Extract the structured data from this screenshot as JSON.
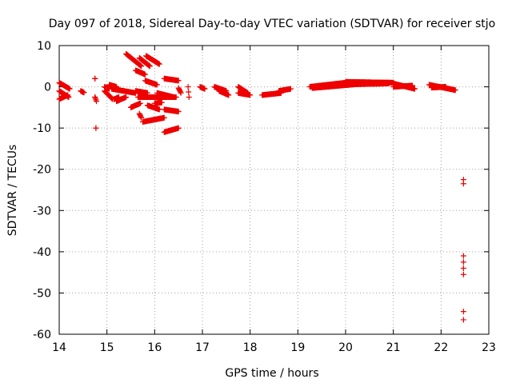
{
  "chart_data": {
    "type": "scatter",
    "title": "Day 097 of 2018, Sidereal Day-to-day VTEC variation (SDTVAR) for receiver stjo",
    "xlabel": "GPS time / hours",
    "ylabel": "SDTVAR / TECUs",
    "xlim": [
      14,
      23
    ],
    "ylim": [
      -60,
      10
    ],
    "xticks": [
      14,
      15,
      16,
      17,
      18,
      19,
      20,
      21,
      22,
      23
    ],
    "yticks": [
      10,
      0,
      -10,
      -20,
      -30,
      -40,
      -50,
      -60
    ],
    "grid": true,
    "marker": "plus",
    "color": "#ee0000",
    "segments": [
      {
        "x": [
          14.0,
          14.22
        ],
        "y": [
          1.0,
          -0.5
        ]
      },
      {
        "x": [
          14.0,
          14.2
        ],
        "y": [
          -1.0,
          -2.5
        ]
      },
      {
        "x": [
          14.0,
          14.18
        ],
        "y": [
          -3.0,
          -2.0
        ]
      },
      {
        "x": [
          14.45,
          14.52
        ],
        "y": [
          -1.0,
          -1.4
        ]
      },
      {
        "x": [
          14.75,
          14.75
        ],
        "y": [
          2.0,
          2.0
        ]
      },
      {
        "x": [
          14.75,
          14.78
        ],
        "y": [
          -2.5,
          -3.5
        ]
      },
      {
        "x": [
          14.77,
          14.77
        ],
        "y": [
          -10.0,
          -10.0
        ]
      },
      {
        "x": [
          14.95,
          15.12
        ],
        "y": [
          -1.0,
          -3.0
        ]
      },
      {
        "x": [
          14.95,
          15.05
        ],
        "y": [
          0.0,
          -0.5
        ]
      },
      {
        "x": [
          15.05,
          15.2
        ],
        "y": [
          0.5,
          0.0
        ]
      },
      {
        "x": [
          15.15,
          15.25
        ],
        "y": [
          -3.0,
          -2.5
        ]
      },
      {
        "x": [
          15.2,
          15.4
        ],
        "y": [
          -3.5,
          -2.5
        ]
      },
      {
        "x": [
          15.1,
          15.6
        ],
        "y": [
          -0.5,
          -1.5
        ]
      },
      {
        "x": [
          15.4,
          15.72
        ],
        "y": [
          8.0,
          5.0
        ]
      },
      {
        "x": [
          15.68,
          15.9
        ],
        "y": [
          7.0,
          5.0
        ]
      },
      {
        "x": [
          15.82,
          16.1
        ],
        "y": [
          7.5,
          5.5
        ]
      },
      {
        "x": [
          15.6,
          15.8
        ],
        "y": [
          4.0,
          3.0
        ]
      },
      {
        "x": [
          15.6,
          15.85
        ],
        "y": [
          -1.0,
          -1.5
        ]
      },
      {
        "x": [
          15.8,
          16.05
        ],
        "y": [
          1.5,
          0.5
        ]
      },
      {
        "x": [
          16.05,
          16.4
        ],
        "y": [
          -1.5,
          -2.5
        ]
      },
      {
        "x": [
          15.5,
          15.7
        ],
        "y": [
          -5.0,
          -4.0
        ]
      },
      {
        "x": [
          15.65,
          16.0
        ],
        "y": [
          -2.5,
          -2.5
        ]
      },
      {
        "x": [
          15.85,
          16.1
        ],
        "y": [
          -4.5,
          -5.5
        ]
      },
      {
        "x": [
          16.0,
          16.45
        ],
        "y": [
          -2.5,
          -2.5
        ]
      },
      {
        "x": [
          16.0,
          16.15
        ],
        "y": [
          -4.0,
          -3.8
        ]
      },
      {
        "x": [
          16.2,
          16.5
        ],
        "y": [
          -5.5,
          -6.0
        ]
      },
      {
        "x": [
          15.68,
          15.72
        ],
        "y": [
          -6.5,
          -7.5
        ]
      },
      {
        "x": [
          15.75,
          16.2
        ],
        "y": [
          -8.5,
          -7.5
        ]
      },
      {
        "x": [
          16.2,
          16.5
        ],
        "y": [
          -11.0,
          -10.0
        ]
      },
      {
        "x": [
          16.2,
          16.5
        ],
        "y": [
          2.0,
          1.5
        ]
      },
      {
        "x": [
          16.5,
          16.55
        ],
        "y": [
          -0.3,
          -1.5
        ]
      },
      {
        "x": [
          16.7,
          16.72
        ],
        "y": [
          0.0,
          -2.5
        ]
      },
      {
        "x": [
          16.95,
          17.05
        ],
        "y": [
          0.0,
          -0.5
        ]
      },
      {
        "x": [
          17.25,
          17.5
        ],
        "y": [
          0.0,
          -1.0
        ]
      },
      {
        "x": [
          17.35,
          17.55
        ],
        "y": [
          -1.0,
          -2.0
        ]
      },
      {
        "x": [
          17.75,
          17.95
        ],
        "y": [
          0.0,
          -1.5
        ]
      },
      {
        "x": [
          17.75,
          18.0
        ],
        "y": [
          -1.5,
          -2.0
        ]
      },
      {
        "x": [
          18.25,
          18.65
        ],
        "y": [
          -2.0,
          -1.5
        ]
      },
      {
        "x": [
          18.6,
          18.85
        ],
        "y": [
          -1.0,
          -0.5
        ]
      },
      {
        "x": [
          19.25,
          20.0
        ],
        "y": [
          0.0,
          1.0
        ]
      },
      {
        "x": [
          19.3,
          20.2
        ],
        "y": [
          -0.3,
          0.6
        ]
      },
      {
        "x": [
          20.0,
          21.0
        ],
        "y": [
          1.2,
          1.0
        ]
      },
      {
        "x": [
          20.1,
          20.9
        ],
        "y": [
          0.6,
          0.8
        ]
      },
      {
        "x": [
          21.0,
          21.45
        ],
        "y": [
          0.8,
          -0.5
        ]
      },
      {
        "x": [
          21.0,
          21.4
        ],
        "y": [
          0.0,
          0.3
        ]
      },
      {
        "x": [
          21.75,
          22.3
        ],
        "y": [
          0.5,
          -0.8
        ]
      },
      {
        "x": [
          21.8,
          22.1
        ],
        "y": [
          -0.2,
          0.0
        ]
      }
    ],
    "points": [
      {
        "x": 22.47,
        "y": -22.5
      },
      {
        "x": 22.47,
        "y": -23.5
      },
      {
        "x": 22.47,
        "y": -41.0
      },
      {
        "x": 22.47,
        "y": -42.5
      },
      {
        "x": 22.47,
        "y": -44.0
      },
      {
        "x": 22.47,
        "y": -45.5
      },
      {
        "x": 22.47,
        "y": -54.5
      },
      {
        "x": 22.47,
        "y": -56.5
      },
      {
        "x": 14.75,
        "y": -2.5
      }
    ]
  }
}
